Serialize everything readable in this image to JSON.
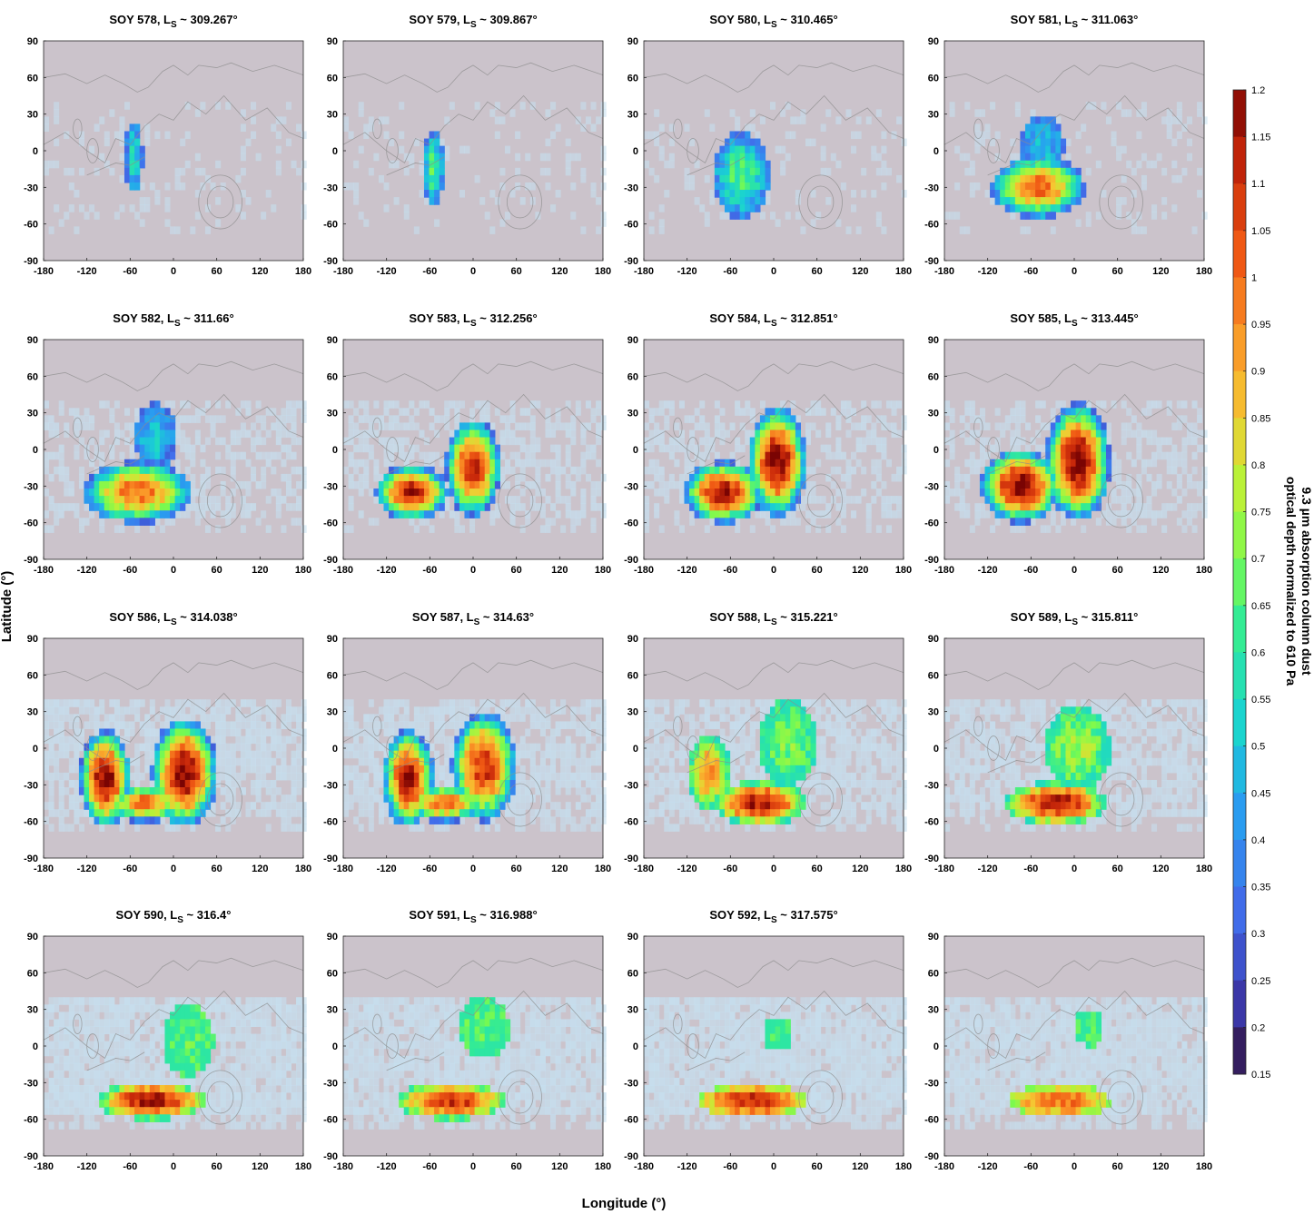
{
  "chart_data": {
    "type": "heatmap",
    "xlabel": "Longitude (°)",
    "ylabel": "Latitude (°)",
    "xlim": [
      -180,
      180
    ],
    "ylim": [
      -90,
      90
    ],
    "xticks": [
      "-180",
      "-120",
      "-60",
      "0",
      "60",
      "120",
      "180"
    ],
    "yticks": [
      "90",
      "60",
      "30",
      "0",
      "-30",
      "-60",
      "-90"
    ],
    "colorbar": {
      "label_line1": "9.3 µm absorption column dust",
      "label_line2": "optical depth normalized to 610 Pa",
      "range": [
        0.15,
        1.2
      ],
      "ticks": [
        "1.2",
        "1.15",
        "1.1",
        "1.05",
        "1",
        "0.95",
        "0.9",
        "0.85",
        "0.8",
        "0.75",
        "0.7",
        "0.65",
        "0.6",
        "0.55",
        "0.5",
        "0.45",
        "0.4",
        "0.35",
        "0.3",
        "0.25",
        "0.2",
        "0.15"
      ],
      "colormap": "turbo"
    },
    "background_color": "#cbc3cb",
    "haze_color": "#c6e0f0",
    "panels": [
      {
        "soy": "SOY 578,",
        "ls": "~ 309.267°",
        "storm": [
          {
            "lon": -55,
            "lat": -5,
            "rx": 12,
            "ry": 30,
            "peak": 0.55,
            "edge": 0.32
          }
        ]
      },
      {
        "soy": "SOY 579,",
        "ls": "~ 309.867°",
        "storm": [
          {
            "lon": -55,
            "lat": -15,
            "rx": 14,
            "ry": 30,
            "peak": 0.65,
            "edge": 0.32
          }
        ]
      },
      {
        "soy": "SOY 580,",
        "ls": "~ 310.465°",
        "storm": [
          {
            "lon": -45,
            "lat": -20,
            "rx": 40,
            "ry": 35,
            "peak": 0.65,
            "edge": 0.32
          }
        ]
      },
      {
        "soy": "SOY 581,",
        "ls": "~ 311.063°",
        "storm": [
          {
            "lon": -50,
            "lat": -30,
            "rx": 65,
            "ry": 25,
            "peak": 1.0,
            "edge": 0.32
          },
          {
            "lon": -45,
            "lat": 5,
            "rx": 30,
            "ry": 25,
            "peak": 0.5,
            "edge": 0.32
          }
        ]
      },
      {
        "soy": "SOY 582,",
        "ls": "~ 311.66°",
        "storm": [
          {
            "lon": -50,
            "lat": -35,
            "rx": 75,
            "ry": 25,
            "peak": 1.0,
            "edge": 0.3
          },
          {
            "lon": -25,
            "lat": 10,
            "rx": 30,
            "ry": 28,
            "peak": 0.5,
            "edge": 0.3
          }
        ]
      },
      {
        "soy": "SOY 583,",
        "ls": "~ 312.256°",
        "storm": [
          {
            "lon": -85,
            "lat": -35,
            "rx": 50,
            "ry": 22,
            "peak": 1.15,
            "edge": 0.3
          },
          {
            "lon": 0,
            "lat": -15,
            "rx": 38,
            "ry": 40,
            "peak": 1.1,
            "edge": 0.3
          }
        ]
      },
      {
        "soy": "SOY 584,",
        "ls": "~ 312.851°",
        "storm": [
          {
            "lon": -70,
            "lat": -35,
            "rx": 55,
            "ry": 25,
            "peak": 1.15,
            "edge": 0.3
          },
          {
            "lon": 5,
            "lat": -10,
            "rx": 40,
            "ry": 45,
            "peak": 1.2,
            "edge": 0.3
          }
        ]
      },
      {
        "soy": "SOY 585,",
        "ls": "~ 313.445°",
        "storm": [
          {
            "lon": -75,
            "lat": -30,
            "rx": 55,
            "ry": 30,
            "peak": 1.2,
            "edge": 0.3
          },
          {
            "lon": 5,
            "lat": -10,
            "rx": 45,
            "ry": 48,
            "peak": 1.2,
            "edge": 0.3
          }
        ]
      },
      {
        "soy": "SOY 586,",
        "ls": "~ 314.038°",
        "storm": [
          {
            "lon": -95,
            "lat": -25,
            "rx": 35,
            "ry": 40,
            "peak": 1.2,
            "edge": 0.3
          },
          {
            "lon": 15,
            "lat": -20,
            "rx": 45,
            "ry": 45,
            "peak": 1.2,
            "edge": 0.3
          },
          {
            "lon": -40,
            "lat": -45,
            "rx": 50,
            "ry": 15,
            "peak": 1.0,
            "edge": 0.3
          }
        ]
      },
      {
        "soy": "SOY 587,",
        "ls": "~ 314.63°",
        "storm": [
          {
            "lon": -90,
            "lat": -25,
            "rx": 35,
            "ry": 40,
            "peak": 1.15,
            "edge": 0.3
          },
          {
            "lon": 15,
            "lat": -15,
            "rx": 45,
            "ry": 45,
            "peak": 1.1,
            "edge": 0.3
          },
          {
            "lon": -40,
            "lat": -45,
            "rx": 55,
            "ry": 15,
            "peak": 1.0,
            "edge": 0.3
          }
        ]
      },
      {
        "soy": "SOY 588,",
        "ls": "~ 315.221°",
        "storm": [
          {
            "lon": -20,
            "lat": -45,
            "rx": 65,
            "ry": 18,
            "peak": 1.15,
            "edge": 0.55
          },
          {
            "lon": 20,
            "lat": 5,
            "rx": 40,
            "ry": 35,
            "peak": 0.7,
            "edge": 0.55
          },
          {
            "lon": -90,
            "lat": -20,
            "rx": 30,
            "ry": 30,
            "peak": 0.95,
            "edge": 0.55
          }
        ]
      },
      {
        "soy": "SOY 589,",
        "ls": "~ 315.811°",
        "storm": [
          {
            "lon": -25,
            "lat": -45,
            "rx": 70,
            "ry": 18,
            "peak": 1.15,
            "edge": 0.55
          },
          {
            "lon": 5,
            "lat": 0,
            "rx": 45,
            "ry": 35,
            "peak": 0.75,
            "edge": 0.55
          }
        ]
      },
      {
        "soy": "SOY 590,",
        "ls": "~ 316.4°",
        "storm": [
          {
            "lon": -30,
            "lat": -45,
            "rx": 75,
            "ry": 15,
            "peak": 1.15,
            "edge": 0.6
          },
          {
            "lon": 20,
            "lat": 5,
            "rx": 35,
            "ry": 30,
            "peak": 0.65,
            "edge": 0.6
          }
        ]
      },
      {
        "soy": "SOY 591,",
        "ls": "~ 316.988°",
        "storm": [
          {
            "lon": -30,
            "lat": -45,
            "rx": 75,
            "ry": 15,
            "peak": 1.1,
            "edge": 0.6
          },
          {
            "lon": 15,
            "lat": 15,
            "rx": 35,
            "ry": 25,
            "peak": 0.65,
            "edge": 0.6
          }
        ]
      },
      {
        "soy": "SOY 592,",
        "ls": "~ 317.575°",
        "storm": [
          {
            "lon": -30,
            "lat": -45,
            "rx": 75,
            "ry": 14,
            "peak": 1.1,
            "edge": 0.7
          },
          {
            "lon": 5,
            "lat": 10,
            "rx": 20,
            "ry": 15,
            "peak": 0.65,
            "edge": 0.6
          }
        ]
      },
      {
        "soy": "",
        "ls": "",
        "storm": [
          {
            "lon": -20,
            "lat": -45,
            "rx": 70,
            "ry": 14,
            "peak": 1.0,
            "edge": 0.7
          },
          {
            "lon": 20,
            "lat": 15,
            "rx": 20,
            "ry": 15,
            "peak": 0.65,
            "edge": 0.6
          }
        ]
      }
    ]
  }
}
